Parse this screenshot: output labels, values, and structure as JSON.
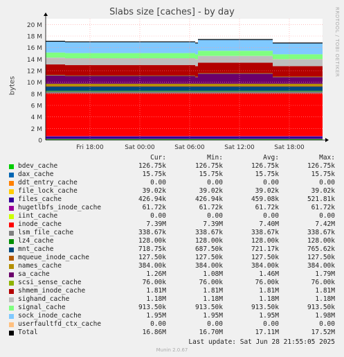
{
  "title": "Slabs size [caches] - by day",
  "vendor": "RRDTOOL / TOBI OETIKER",
  "footer": "Last update: Sat Jun 28 21:55:05 2025",
  "munin": "Munin 2.0.67",
  "columns": {
    "cur": "Cur:",
    "min": "Min:",
    "avg": "Avg:",
    "max": "Max:"
  },
  "chart_data": {
    "type": "area",
    "title": "Slabs size [caches] - by day",
    "ylabel": "bytes",
    "ylim": [
      0,
      21
    ],
    "y_ticks": [
      "0",
      "2 M",
      "4 M",
      "6 M",
      "8 M",
      "10 M",
      "12 M",
      "14 M",
      "16 M",
      "18 M",
      "20 M"
    ],
    "x_ticks": [
      "Fri 18:00",
      "Sat 00:00",
      "Sat 06:00",
      "Sat 12:00",
      "Sat 18:00"
    ],
    "stacked": true,
    "grid": true,
    "legend_placement": "bottom",
    "series": [
      {
        "name": "bdev_cache",
        "color": "#00cc00",
        "cur": "126.75k",
        "min": "126.75k",
        "avg": "126.75k",
        "max": "126.75k"
      },
      {
        "name": "dax_cache",
        "color": "#0066b3",
        "cur": "15.75k",
        "min": "15.75k",
        "avg": "15.75k",
        "max": "15.75k"
      },
      {
        "name": "ddt_entry_cache",
        "color": "#ff8000",
        "cur": "0.00",
        "min": "0.00",
        "avg": "0.00",
        "max": "0.00"
      },
      {
        "name": "file_lock_cache",
        "color": "#ffcc00",
        "cur": "39.02k",
        "min": "39.02k",
        "avg": "39.02k",
        "max": "39.02k"
      },
      {
        "name": "files_cache",
        "color": "#330099",
        "cur": "426.94k",
        "min": "426.94k",
        "avg": "459.08k",
        "max": "521.81k"
      },
      {
        "name": "hugetlbfs_inode_cache",
        "color": "#990099",
        "cur": "61.72k",
        "min": "61.72k",
        "avg": "61.72k",
        "max": "61.72k"
      },
      {
        "name": "iint_cache",
        "color": "#ccff00",
        "cur": "0.00",
        "min": "0.00",
        "avg": "0.00",
        "max": "0.00"
      },
      {
        "name": "inode_cache",
        "color": "#ff0000",
        "cur": "7.39M",
        "min": "7.39M",
        "avg": "7.40M",
        "max": "7.42M"
      },
      {
        "name": "lsm_file_cache",
        "color": "#808080",
        "cur": "338.67k",
        "min": "338.67k",
        "avg": "338.67k",
        "max": "338.67k"
      },
      {
        "name": "lz4_cache",
        "color": "#008f00",
        "cur": "128.00k",
        "min": "128.00k",
        "avg": "128.00k",
        "max": "128.00k"
      },
      {
        "name": "mnt_cache",
        "color": "#00487d",
        "cur": "718.75k",
        "min": "687.50k",
        "avg": "721.17k",
        "max": "765.62k"
      },
      {
        "name": "mqueue_inode_cache",
        "color": "#b35a00",
        "cur": "127.50k",
        "min": "127.50k",
        "avg": "127.50k",
        "max": "127.50k"
      },
      {
        "name": "names_cache",
        "color": "#b38f00",
        "cur": "384.00k",
        "min": "384.00k",
        "avg": "384.00k",
        "max": "384.00k"
      },
      {
        "name": "sa_cache",
        "color": "#6b006b",
        "cur": "1.26M",
        "min": "1.08M",
        "avg": "1.46M",
        "max": "1.79M"
      },
      {
        "name": "scsi_sense_cache",
        "color": "#8fb300",
        "cur": "76.00k",
        "min": "76.00k",
        "avg": "76.00k",
        "max": "76.00k"
      },
      {
        "name": "shmem_inode_cache",
        "color": "#b30000",
        "cur": "1.81M",
        "min": "1.81M",
        "avg": "1.81M",
        "max": "1.81M"
      },
      {
        "name": "sighand_cache",
        "color": "#bebebe",
        "cur": "1.18M",
        "min": "1.18M",
        "avg": "1.18M",
        "max": "1.18M"
      },
      {
        "name": "signal_cache",
        "color": "#80ff80",
        "cur": "913.50k",
        "min": "913.50k",
        "avg": "913.50k",
        "max": "913.50k"
      },
      {
        "name": "sock_inode_cache",
        "color": "#80c9ff",
        "cur": "1.95M",
        "min": "1.95M",
        "avg": "1.95M",
        "max": "1.98M"
      },
      {
        "name": "userfaultfd_ctx_cache",
        "color": "#ffc080",
        "cur": "0.00",
        "min": "0.00",
        "avg": "0.00",
        "max": "0.00"
      },
      {
        "name": "Total",
        "color": "#000000",
        "cur": "16.86M",
        "min": "16.70M",
        "avg": "17.11M",
        "max": "17.52M"
      }
    ]
  }
}
